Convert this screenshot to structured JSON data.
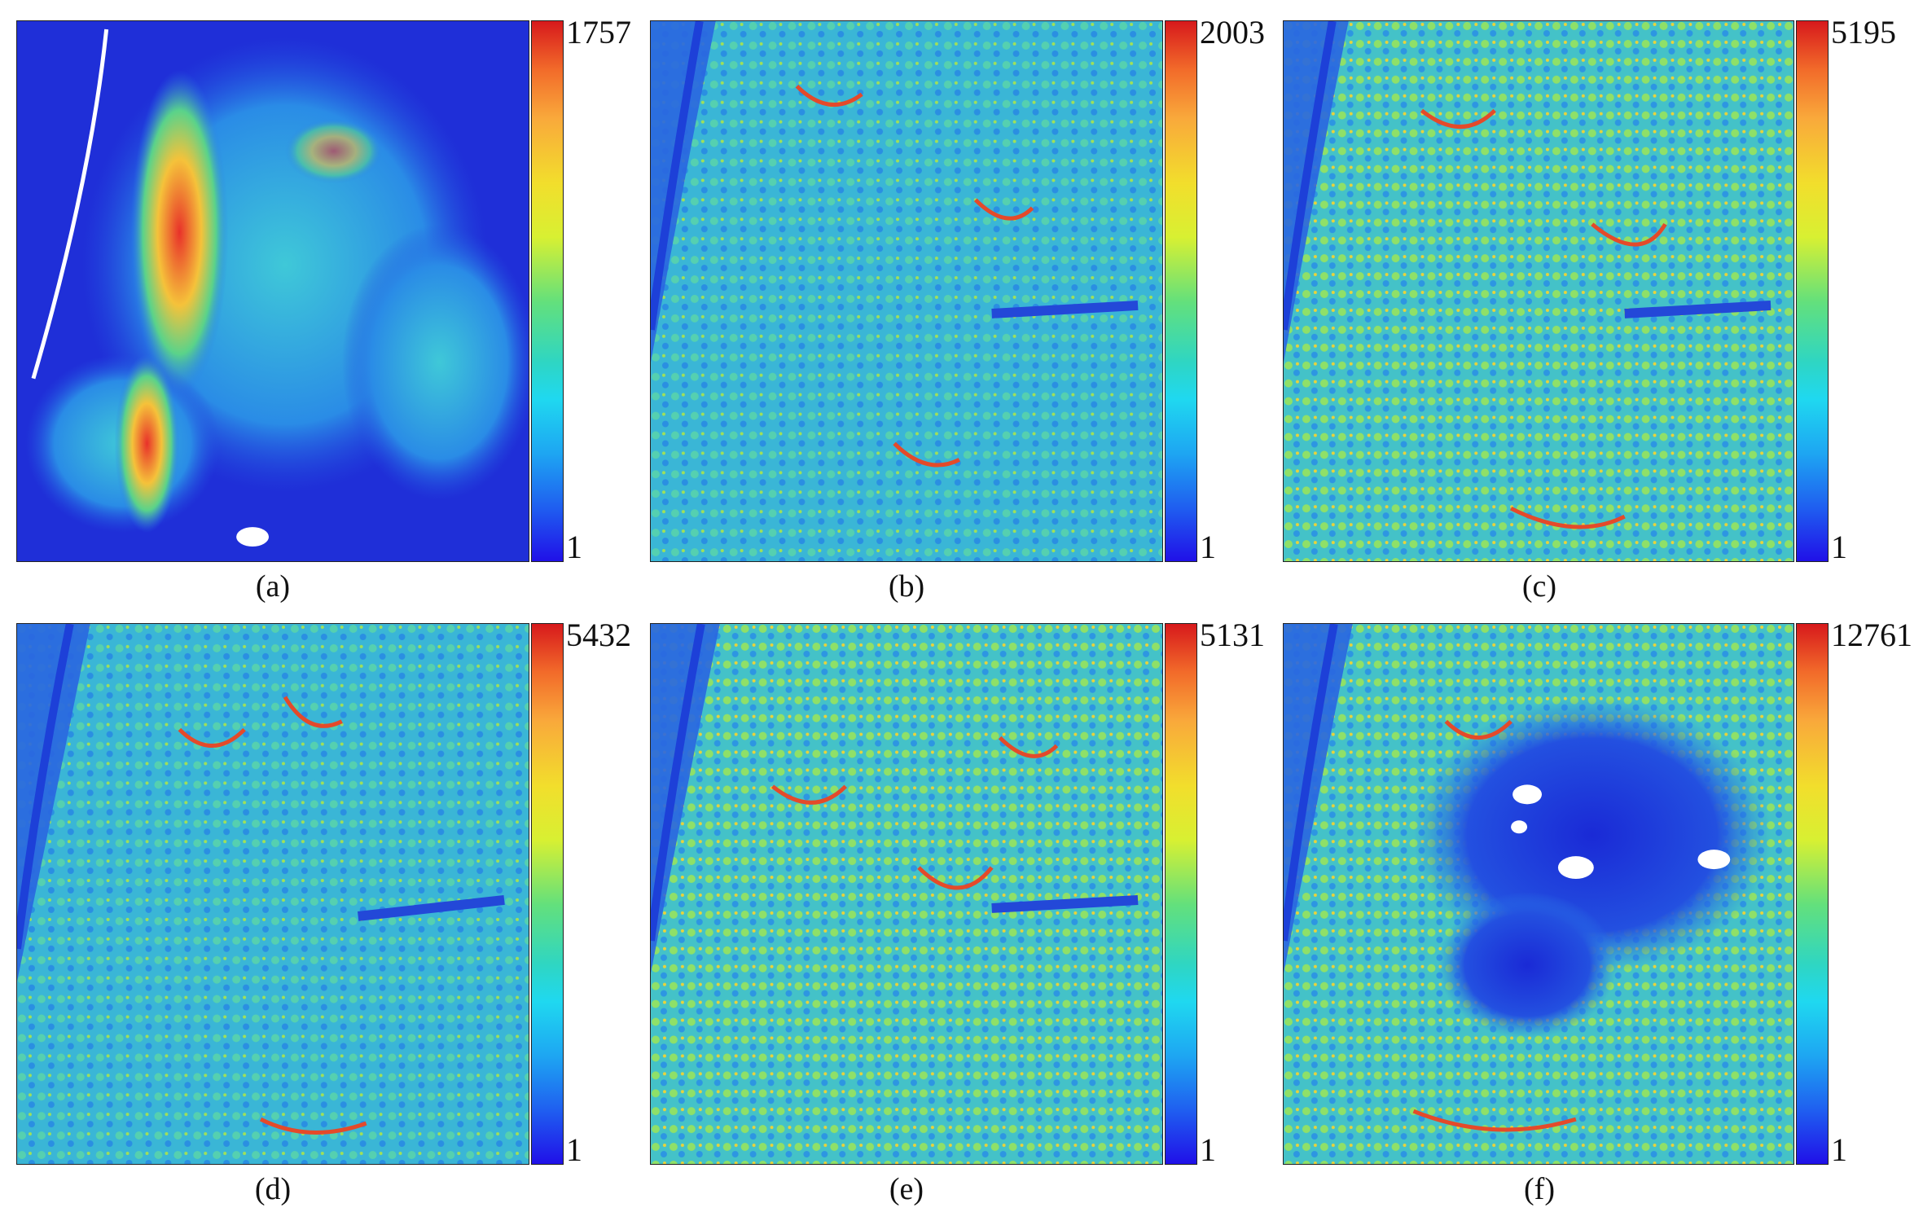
{
  "panels": [
    {
      "label": "(a)",
      "max": "1757",
      "min": "1"
    },
    {
      "label": "(b)",
      "max": "2003",
      "min": "1"
    },
    {
      "label": "(c)",
      "max": "5195",
      "min": "1"
    },
    {
      "label": "(d)",
      "max": "5432",
      "min": "1"
    },
    {
      "label": "(e)",
      "max": "5131",
      "min": "1"
    },
    {
      "label": "(f)",
      "max": "12761",
      "min": "1"
    }
  ],
  "colors": {
    "colormap": [
      "#2010e8",
      "#1f5ff0",
      "#1ea6f2",
      "#1fd8f0",
      "#2fd6c2",
      "#63e07c",
      "#d8f032",
      "#f2de2c",
      "#f9a93b",
      "#f26b2a",
      "#d7191c"
    ],
    "background_map": "#2350e0",
    "canopy": "#2fb6d8"
  }
}
